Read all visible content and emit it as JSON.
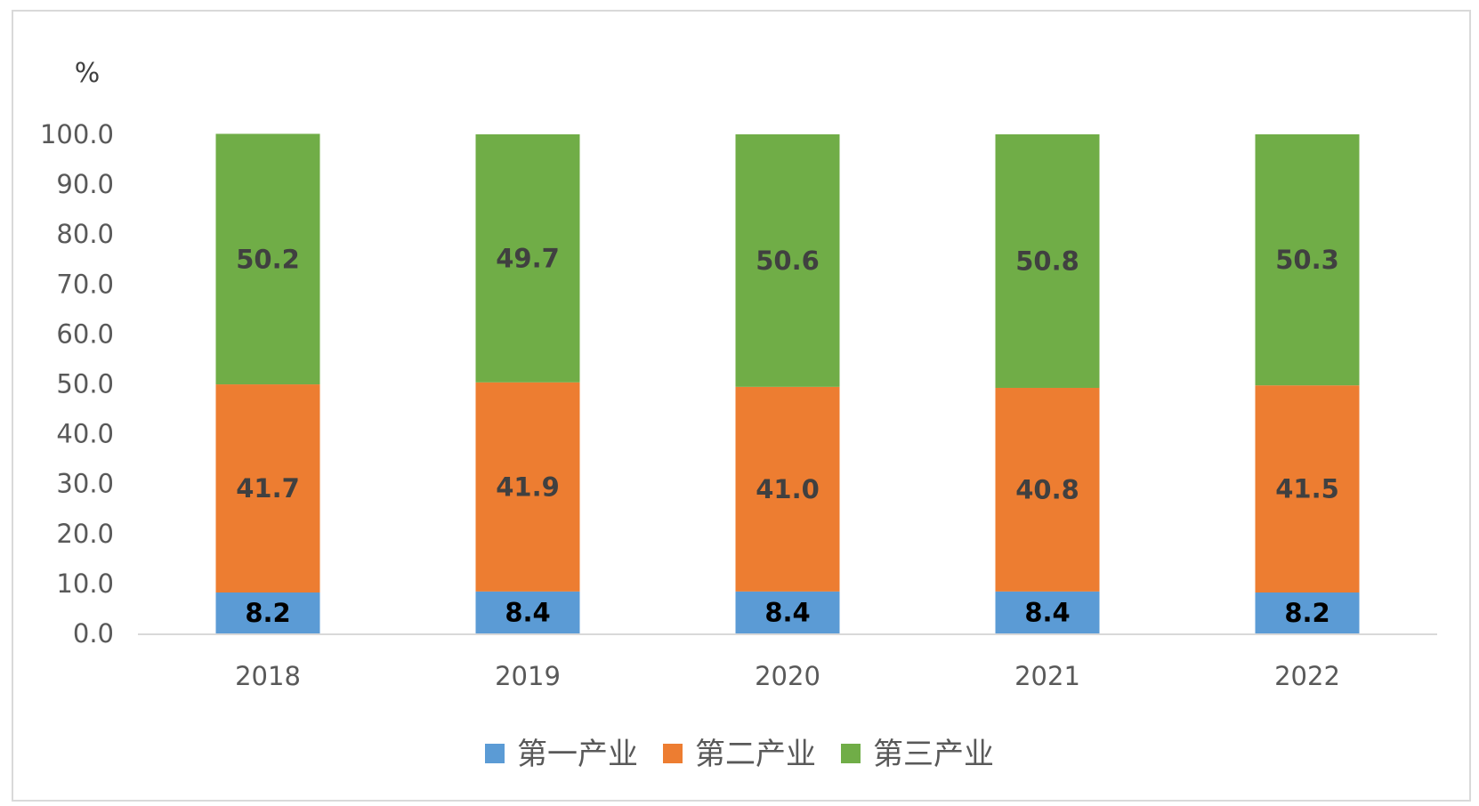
{
  "chart_data": {
    "type": "bar",
    "stacked": true,
    "y_unit": "%",
    "categories": [
      "2018",
      "2019",
      "2020",
      "2021",
      "2022"
    ],
    "series": [
      {
        "name": "第一产业",
        "values": [
          8.2,
          8.4,
          8.4,
          8.4,
          8.2
        ],
        "color": "#5b9bd5",
        "label_color": "#000000"
      },
      {
        "name": "第二产业",
        "values": [
          41.7,
          41.9,
          41.0,
          40.8,
          41.5
        ],
        "color": "#ed7d31",
        "label_color": "#404040"
      },
      {
        "name": "第三产业",
        "values": [
          50.2,
          49.7,
          50.6,
          50.8,
          50.3
        ],
        "color": "#70ad47",
        "label_color": "#404040"
      }
    ],
    "ylim": [
      0,
      100
    ],
    "yticks": [
      "0.0",
      "10.0",
      "20.0",
      "30.0",
      "40.0",
      "50.0",
      "60.0",
      "70.0",
      "80.0",
      "90.0",
      "100.0"
    ],
    "grid": false,
    "legend_position": "bottom",
    "title": "",
    "xlabel": "",
    "ylabel": ""
  }
}
